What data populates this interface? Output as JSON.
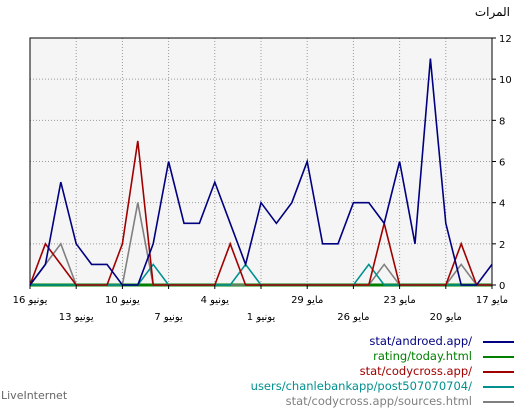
{
  "chart_data": {
    "type": "line",
    "ylabel": "المرات",
    "ylim": [
      0,
      12
    ],
    "yticks": [
      0,
      2,
      4,
      6,
      8,
      10,
      12
    ],
    "grid": true,
    "legend_position": "bottom",
    "x": [
      "16 يونيو",
      "",
      "",
      "13 يونيو",
      "",
      "",
      "10 يونيو",
      "",
      "",
      "7 يونيو",
      "",
      "",
      "4 يونيو",
      "",
      "",
      "1 يونيو",
      "",
      "",
      "29 مايو",
      "",
      "",
      "26 مايو",
      "",
      "",
      "23 مايو",
      "",
      "",
      "20 مايو",
      "",
      "",
      "17 مايو"
    ],
    "x_labels_row1": [
      "16 يونيو",
      "10 يونيو",
      "4 يونيو",
      "29 مايو",
      "23 مايو",
      "17 مايو"
    ],
    "x_labels_row2": [
      "13 يونيو",
      "7 يونيو",
      "1 يونيو",
      "26 مايو",
      "20 مايو"
    ],
    "series": [
      {
        "name": "stat/androed.app/",
        "color": "#000080",
        "values": [
          0,
          1,
          5,
          2,
          1,
          1,
          0,
          0,
          2,
          6,
          3,
          3,
          5,
          3,
          1,
          4,
          3,
          4,
          6,
          2,
          2,
          4,
          4,
          3,
          6,
          2,
          11,
          3,
          0,
          0,
          1
        ]
      },
      {
        "name": "rating/today.html",
        "color": "#008000",
        "values": [
          0,
          0,
          0,
          0,
          0,
          0,
          0,
          0,
          0,
          0,
          0,
          0,
          0,
          0,
          0,
          0,
          0,
          0,
          0,
          0,
          0,
          0,
          0,
          0,
          0,
          0,
          0,
          0,
          0,
          0,
          0
        ]
      },
      {
        "name": "stat/codycross.app/",
        "color": "#a00000",
        "values": [
          0,
          2,
          1,
          0,
          0,
          0,
          2,
          7,
          0,
          0,
          0,
          0,
          0,
          2,
          0,
          0,
          0,
          0,
          0,
          0,
          0,
          0,
          0,
          3,
          0,
          0,
          0,
          0,
          2,
          0,
          0
        ]
      },
      {
        "name": "users/chanlebankapp/post507070704/",
        "color": "#009090",
        "values": [
          0,
          0,
          0,
          0,
          0,
          0,
          0,
          0,
          1,
          0,
          0,
          0,
          0,
          0,
          1,
          0,
          0,
          0,
          0,
          0,
          0,
          0,
          1,
          0,
          0,
          0,
          0,
          0,
          0,
          0,
          0
        ]
      },
      {
        "name": "stat/codycross.app/sources.html",
        "color": "#808080",
        "values": [
          0,
          1,
          2,
          0,
          0,
          0,
          0,
          4,
          0,
          0,
          0,
          0,
          0,
          0,
          0,
          0,
          0,
          0,
          0,
          0,
          0,
          0,
          0,
          1,
          0,
          0,
          0,
          0,
          1,
          0,
          0
        ]
      }
    ]
  },
  "brand": "LiveInternet"
}
